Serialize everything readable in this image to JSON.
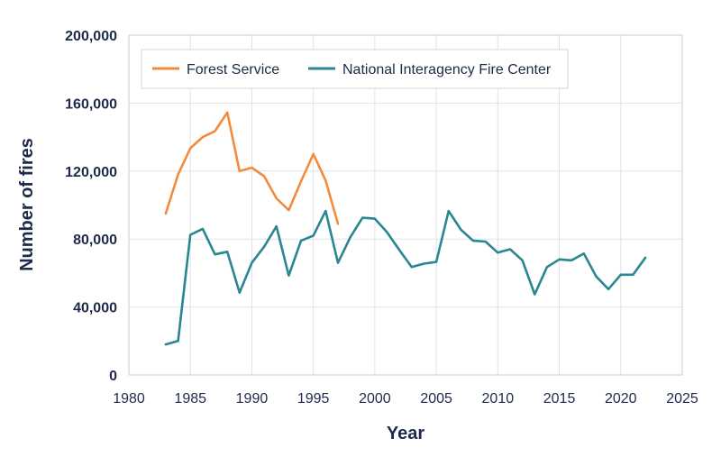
{
  "chart_data": {
    "type": "line",
    "title": "",
    "xlabel": "Year",
    "ylabel": "Number of fires",
    "xlim": [
      1980,
      2025
    ],
    "ylim": [
      0,
      200000
    ],
    "x_ticks": [
      1980,
      1985,
      1990,
      1995,
      2000,
      2005,
      2010,
      2015,
      2020,
      2025
    ],
    "x_tick_labels": [
      "1980",
      "1985",
      "1990",
      "1995",
      "2000",
      "2005",
      "2010",
      "2015",
      "2020",
      "2025"
    ],
    "y_ticks": [
      0,
      40000,
      80000,
      120000,
      160000,
      200000
    ],
    "y_tick_labels": [
      "0",
      "40,000",
      "80,000",
      "120,000",
      "160,000",
      "200,000"
    ],
    "grid": true,
    "legend_position": "top-left",
    "series": [
      {
        "name": "Forest Service",
        "color": "#f28c3c",
        "x": [
          1983,
          1984,
          1985,
          1986,
          1987,
          1988,
          1989,
          1990,
          1991,
          1992,
          1993,
          1994,
          1995,
          1996,
          1997
        ],
        "values": [
          95000,
          118000,
          133500,
          140000,
          143500,
          154500,
          120000,
          122000,
          117000,
          104000,
          97000,
          114000,
          130000,
          114500,
          89000
        ]
      },
      {
        "name": "National Interagency Fire Center",
        "color": "#2a8690",
        "x": [
          1983,
          1984,
          1985,
          1986,
          1987,
          1988,
          1989,
          1990,
          1991,
          1992,
          1993,
          1994,
          1995,
          1996,
          1997,
          1998,
          1999,
          2000,
          2001,
          2002,
          2003,
          2004,
          2005,
          2006,
          2007,
          2008,
          2009,
          2010,
          2011,
          2012,
          2013,
          2014,
          2015,
          2016,
          2017,
          2018,
          2019,
          2020,
          2021,
          2022
        ],
        "values": [
          18000,
          20000,
          82500,
          86000,
          71000,
          72500,
          48500,
          66000,
          75500,
          87500,
          58500,
          79000,
          82000,
          96500,
          66000,
          81000,
          92500,
          92000,
          84000,
          73500,
          63500,
          65500,
          66500,
          96500,
          85500,
          79000,
          78500,
          72000,
          74000,
          67500,
          47500,
          63500,
          68000,
          67500,
          71500,
          58000,
          50500,
          59000,
          59000,
          69000
        ]
      }
    ]
  }
}
